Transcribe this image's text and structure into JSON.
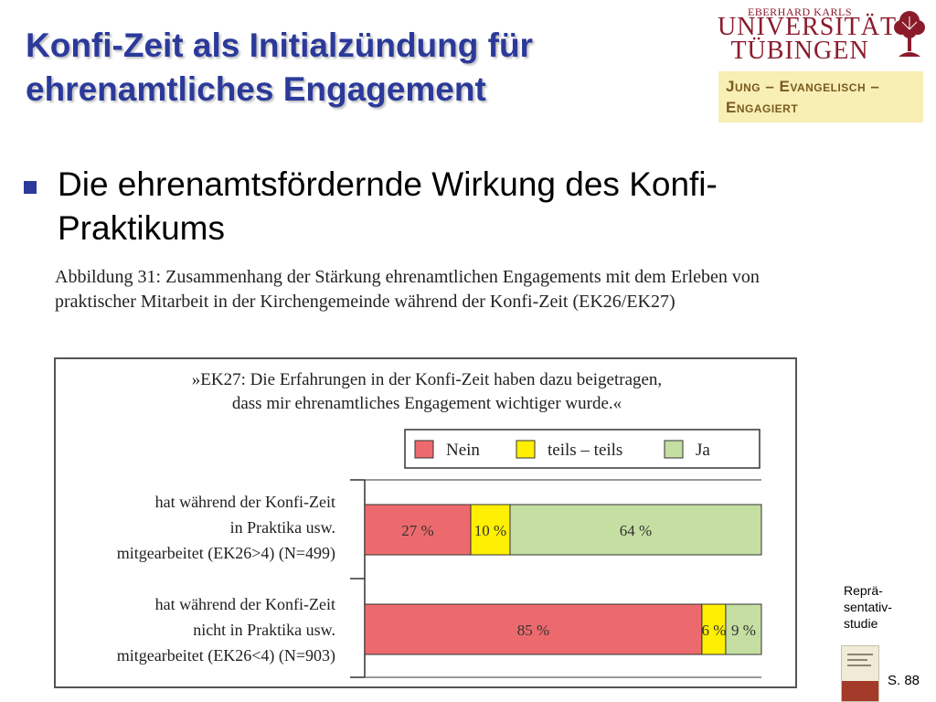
{
  "slide": {
    "title": "Konfi-Zeit als Initialzündung für ehrenamtliches Engagement",
    "bullet": "Die ehrenamtsfördernde Wirkung des Konfi-Praktikums",
    "caption": "Abbildung 31: Zusammenhang der Stärkung ehrenamtlichen Engagements mit dem Erleben von praktischer Mitarbeit in der Kirchengemeinde während der Konfi-Zeit (EK26/EK27)",
    "side_note": "Reprä-sentativ-studie",
    "page": "S. 88"
  },
  "logo": {
    "line1": "EBERHARD KARLS",
    "line2": "UNIVERSITÄT",
    "line3": "TÜBINGEN",
    "tag_line1": "Jung – Evangelisch –",
    "tag_line2": "Engagiert"
  },
  "colors": {
    "title": "#2b3a9a",
    "nein": "#ec6a6d",
    "teils": "#ffef00",
    "ja": "#c5dea2",
    "logo": "#8b1b2b"
  },
  "chart_data": {
    "type": "bar",
    "orientation": "horizontal",
    "stacked": true,
    "title_lines": [
      "»EK27: Die Erfahrungen in der Konfi-Zeit haben dazu beigetragen,",
      "dass mir ehrenamtliches Engagement wichtiger wurde.«"
    ],
    "legend_position": "top-right",
    "xlim": [
      0,
      100
    ],
    "unit": "%",
    "categories": [
      [
        "hat während der Konfi-Zeit",
        "in Praktika usw.",
        "mitgearbeitet (EK26>4) (N=499)"
      ],
      [
        "hat während der Konfi-Zeit",
        "nicht in Praktika usw.",
        "mitgearbeitet (EK26<4) (N=903)"
      ]
    ],
    "series": [
      {
        "name": "Nein",
        "color": "#ec6a6d",
        "values": [
          27,
          85
        ]
      },
      {
        "name": "teils – teils",
        "color": "#ffef00",
        "values": [
          10,
          6
        ]
      },
      {
        "name": "Ja",
        "color": "#c5dea2",
        "values": [
          64,
          9
        ]
      }
    ]
  }
}
